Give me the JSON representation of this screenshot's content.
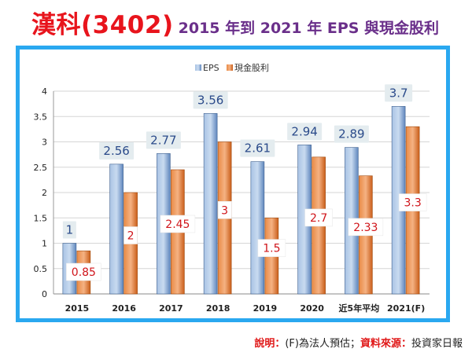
{
  "header": {
    "title_main": "漢科(3402)",
    "title_sub": "2015 年到 2021 年 EPS 與現金股利"
  },
  "footer": {
    "note_label": "說明：",
    "note_text": "(F)為法人預估；",
    "source_label": "資料來源：",
    "source_text": "投資家日報"
  },
  "colors": {
    "frame": "#2aa8f0",
    "eps_bar": "#7da2d0",
    "dividend_bar": "#e0782e"
  },
  "chart_data": {
    "type": "bar",
    "categories": [
      "2015",
      "2016",
      "2017",
      "2018",
      "2019",
      "2020",
      "近5年平均",
      "2021(F)"
    ],
    "series": [
      {
        "name": "EPS",
        "values": [
          1,
          2.56,
          2.77,
          3.56,
          2.61,
          2.94,
          2.89,
          3.7
        ],
        "labels": [
          "1",
          "2.56",
          "2.77",
          "3.56",
          "2.61",
          "2.94",
          "2.89",
          "3.7"
        ]
      },
      {
        "name": "現金股利",
        "values": [
          0.85,
          2,
          2.45,
          3,
          1.5,
          2.7,
          2.33,
          3.3
        ],
        "labels": [
          "0.85",
          "2",
          "2.45",
          "3",
          "1.5",
          "2.7",
          "2.33",
          "3.3"
        ]
      }
    ],
    "yticks": [
      "0",
      "0.5",
      "1",
      "1.5",
      "2",
      "2.5",
      "3",
      "3.5",
      "4"
    ],
    "ylim": [
      0,
      4
    ],
    "grid": true,
    "legend": "top-center"
  }
}
